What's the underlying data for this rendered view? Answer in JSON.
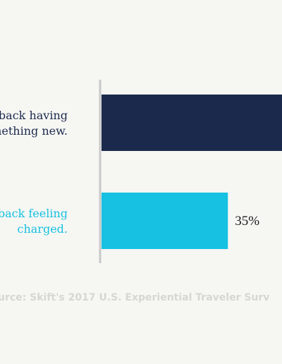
{
  "chart_data": {
    "type": "bar",
    "orientation": "horizontal",
    "categories": [
      "back having\nnething new.",
      "back feeling\ncharged."
    ],
    "values": [
      50,
      35
    ],
    "value_labels": [
      "",
      "35%"
    ],
    "xlim": [
      0,
      50
    ],
    "grid": false,
    "legend": "none",
    "bar_colors": [
      "#1b2a4c",
      "#16c1e1"
    ],
    "label_colors": [
      "#1b2a4c",
      "#16c1e1"
    ],
    "source": "urce: Skift's 2017 U.S. Experiential Traveler Surv"
  },
  "colors": {
    "background": "#f6f6f3",
    "axis": "#c8c8c8",
    "source": "#d6d6d3"
  }
}
